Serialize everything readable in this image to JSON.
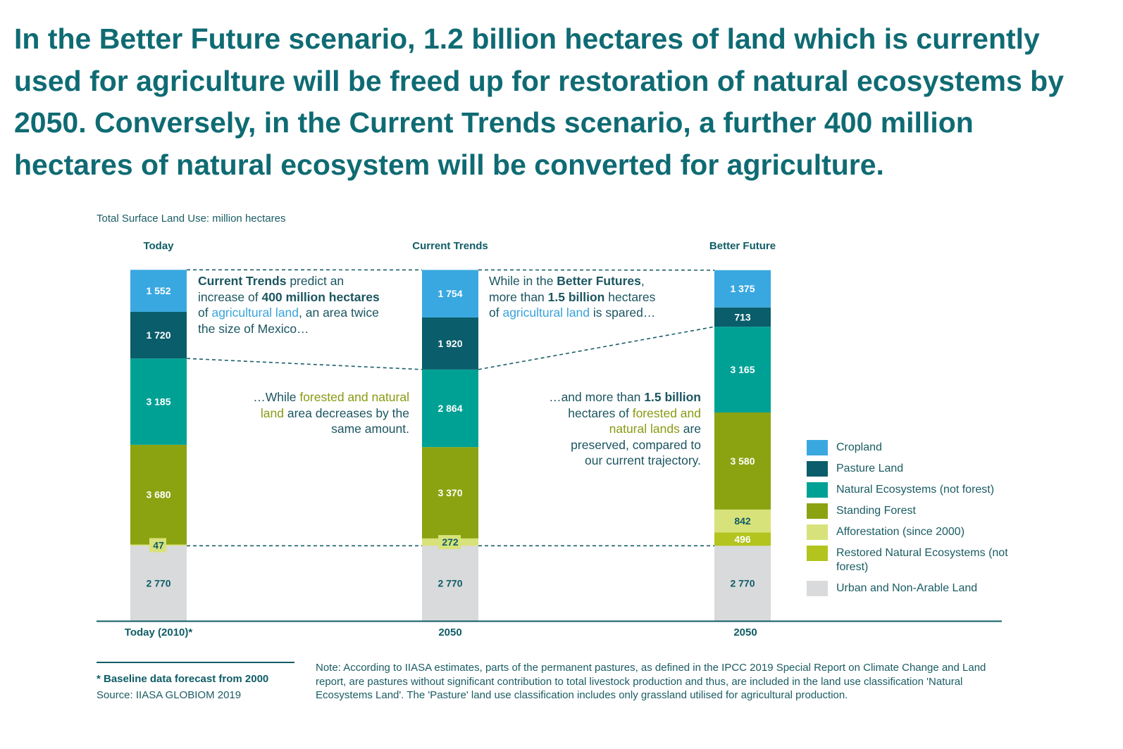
{
  "headline": "In the Better Future scenario, 1.2 billion hectares of land which is currently used for agriculture will be freed up for restoration of natural ecosystems by 2050. Conversely, in the Current Trends scenario, a further 400 million hectares of natural ecosystem will be converted for agriculture.",
  "colors": {
    "cropland": "#3aa8e0",
    "pasture": "#0a5d6a",
    "natural_ecosystems": "#00a195",
    "standing_forest": "#8ba311",
    "afforestation": "#d8e27a",
    "restored": "#b3c41e",
    "urban": "#d9dadc",
    "axis": "#0f5d66"
  },
  "chart_data": {
    "type": "bar",
    "stacked": true,
    "title": "Total Surface Land Use: million hectares",
    "column_headers": [
      "Today",
      "Current Trends",
      "Better Future"
    ],
    "categories": [
      "Today (2010)*",
      "2050",
      "2050"
    ],
    "series": [
      {
        "name": "Urban and Non-Arable Land",
        "key": "urban",
        "values": [
          2770,
          2770,
          2770
        ],
        "labels": [
          "2 770",
          "2 770",
          "2 770"
        ]
      },
      {
        "name": "Restored Natural Ecosystems (not forest)",
        "key": "restored",
        "values": [
          0,
          0,
          496
        ],
        "labels": [
          "",
          "",
          "496"
        ]
      },
      {
        "name": "Afforestation (since 2000)",
        "key": "afforestation",
        "values": [
          47,
          272,
          842
        ],
        "labels": [
          "47",
          "272",
          "842"
        ]
      },
      {
        "name": "Standing Forest",
        "key": "standing_forest",
        "values": [
          3680,
          3370,
          3580
        ],
        "labels": [
          "3 680",
          "3 370",
          "3 580"
        ]
      },
      {
        "name": "Natural Ecosystems (not forest)",
        "key": "natural_ecosystems",
        "values": [
          3185,
          2864,
          3165
        ],
        "labels": [
          "3 185",
          "2 864",
          "3 165"
        ]
      },
      {
        "name": "Pasture Land",
        "key": "pasture",
        "values": [
          1720,
          1920,
          713
        ],
        "labels": [
          "1 720",
          "1 920",
          "713"
        ]
      },
      {
        "name": "Cropland",
        "key": "cropland",
        "values": [
          1552,
          1754,
          1375
        ],
        "labels": [
          "1 552",
          "1 754",
          "1 375"
        ]
      }
    ],
    "legend_order": [
      "Cropland",
      "Pasture Land",
      "Natural Ecosystems (not forest)",
      "Standing Forest",
      "Afforestation (since 2000)",
      "Restored Natural Ecosystems (not forest)",
      "Urban and Non-Arable Land"
    ],
    "legend_placement": "right",
    "grid": false
  },
  "annotations": {
    "ct_agri": {
      "l1_b": "Current Trends",
      "l1_r": " predict an",
      "l2_a": "increase of ",
      "l2_b": "400 million hectares",
      "l3_a": "of ",
      "l3_blue": "agricultural land",
      "l3_b": ", an area twice",
      "l4": "the size of Mexico…"
    },
    "ct_forest": {
      "l1_a": "…While ",
      "l1_olive": "forested and natural",
      "l2_olive": "land",
      "l2_b": " area decreases by the",
      "l3": "same amount."
    },
    "bf_agri": {
      "l1_a": "While in the ",
      "l1_b": "Better Futures",
      "l2_a": "more than ",
      "l2_b": "1.5 billion",
      "l2_c": " hectares",
      "l3_a": "of ",
      "l3_blue": "agricultural land",
      "l3_b": " is spared…"
    },
    "bf_forest": {
      "l1_a": "…and more than ",
      "l1_b": "1.5 billion",
      "l2_a": "hectares of ",
      "l2_olive": "forested and",
      "l3_olive": "natural lands",
      "l3_b": " are",
      "l4": "preserved, compared to",
      "l5": "our current trajectory."
    }
  },
  "footnote": "* Baseline data forecast from 2000",
  "source": "Source: IIASA GLOBIOM 2019",
  "note": "Note: According to IIASA estimates, parts of the permanent pastures, as defined in the IPCC 2019 Special Report on Climate Change and Land report, are pastures without significant contribution to total livestock production and thus, are included in the land use classification 'Natural Ecosystems Land'. The 'Pasture' land use classification includes only grassland utilised for agricultural production."
}
